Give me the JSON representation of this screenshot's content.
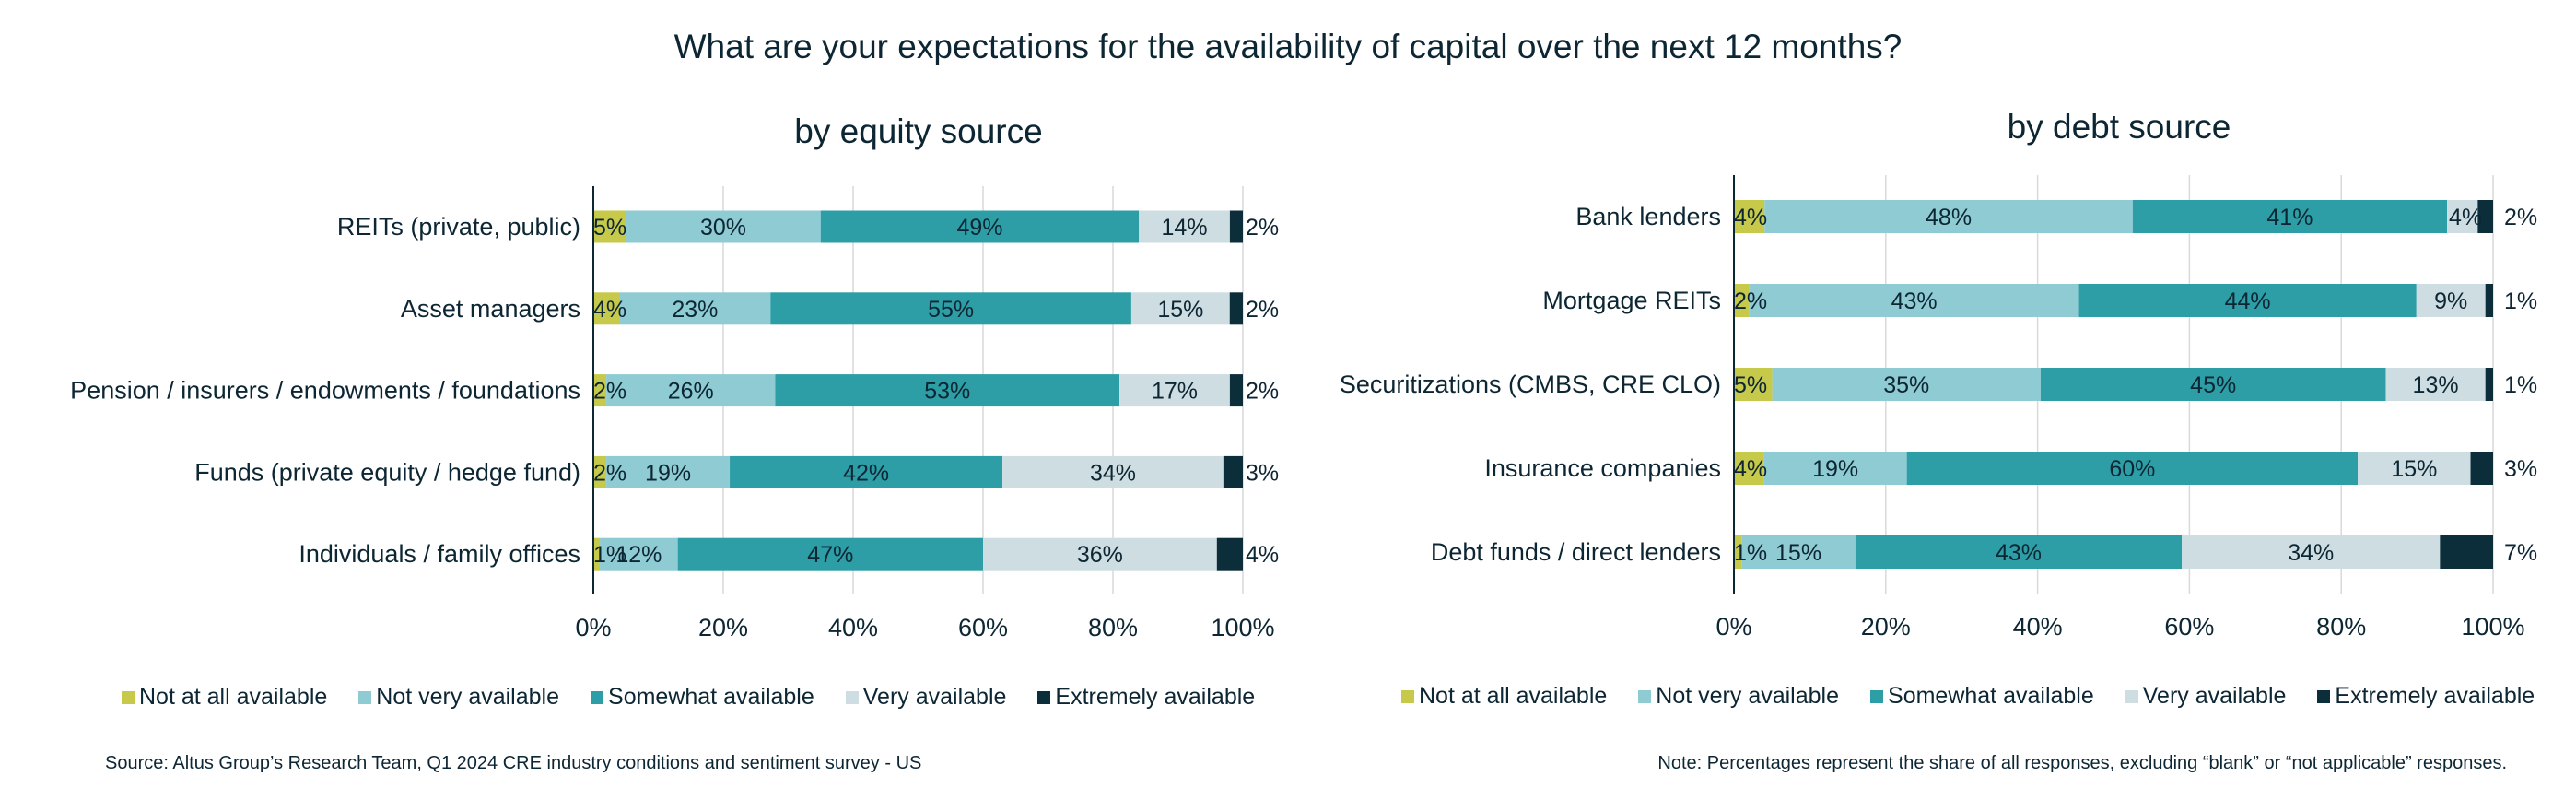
{
  "title": "What are your expectations for the availability of capital over the next 12 months?",
  "legend": [
    {
      "label": "Not at all available",
      "color": "#c6c94a"
    },
    {
      "label": "Not very available",
      "color": "#8fcbd3"
    },
    {
      "label": "Somewhat available",
      "color": "#2d9ea6"
    },
    {
      "label": "Very available",
      "color": "#cedde2"
    },
    {
      "label": "Extremely available",
      "color": "#0c2e3a"
    }
  ],
  "source_note": "Source: Altus Group’s Research Team, Q1 2024 CRE industry conditions and sentiment survey - US",
  "footnote": "Note: Percentages represent the share of all responses, excluding “blank” or “not applicable” responses.",
  "chart_data": [
    {
      "type": "bar",
      "orientation": "horizontal-stacked-100",
      "title": "by equity source",
      "xlabel": "",
      "ylabel": "",
      "xlim": [
        0,
        100
      ],
      "x_ticks": [
        "0%",
        "20%",
        "40%",
        "60%",
        "80%",
        "100%"
      ],
      "grid": true,
      "legend_position": "bottom",
      "categories": [
        "REITs (private, public)",
        "Asset managers",
        "Pension / insurers / endowments / foundations",
        "Funds (private equity / hedge fund)",
        "Individuals / family offices"
      ],
      "series": [
        {
          "name": "Not at all available",
          "values": [
            5,
            4,
            2,
            2,
            1
          ]
        },
        {
          "name": "Not very available",
          "values": [
            30,
            23,
            26,
            19,
            12
          ]
        },
        {
          "name": "Somewhat available",
          "values": [
            49,
            55,
            53,
            42,
            47
          ]
        },
        {
          "name": "Very available",
          "values": [
            14,
            15,
            17,
            34,
            36
          ]
        },
        {
          "name": "Extremely available",
          "values": [
            2,
            2,
            2,
            3,
            4
          ]
        }
      ]
    },
    {
      "type": "bar",
      "orientation": "horizontal-stacked-100",
      "title": "by debt source",
      "xlabel": "",
      "ylabel": "",
      "xlim": [
        0,
        100
      ],
      "x_ticks": [
        "0%",
        "20%",
        "40%",
        "60%",
        "80%",
        "100%"
      ],
      "grid": true,
      "legend_position": "bottom",
      "categories": [
        "Bank lenders",
        "Mortgage REITs",
        "Securitizations (CMBS, CRE CLO)",
        "Insurance companies",
        "Debt funds / direct lenders"
      ],
      "series": [
        {
          "name": "Not at all available",
          "values": [
            4,
            2,
            5,
            4,
            1
          ]
        },
        {
          "name": "Not very available",
          "values": [
            48,
            43,
            35,
            19,
            15
          ]
        },
        {
          "name": "Somewhat available",
          "values": [
            41,
            44,
            45,
            60,
            43
          ]
        },
        {
          "name": "Very available",
          "values": [
            4,
            9,
            13,
            15,
            34
          ]
        },
        {
          "name": "Extremely available",
          "values": [
            2,
            1,
            1,
            3,
            7
          ]
        }
      ]
    }
  ]
}
